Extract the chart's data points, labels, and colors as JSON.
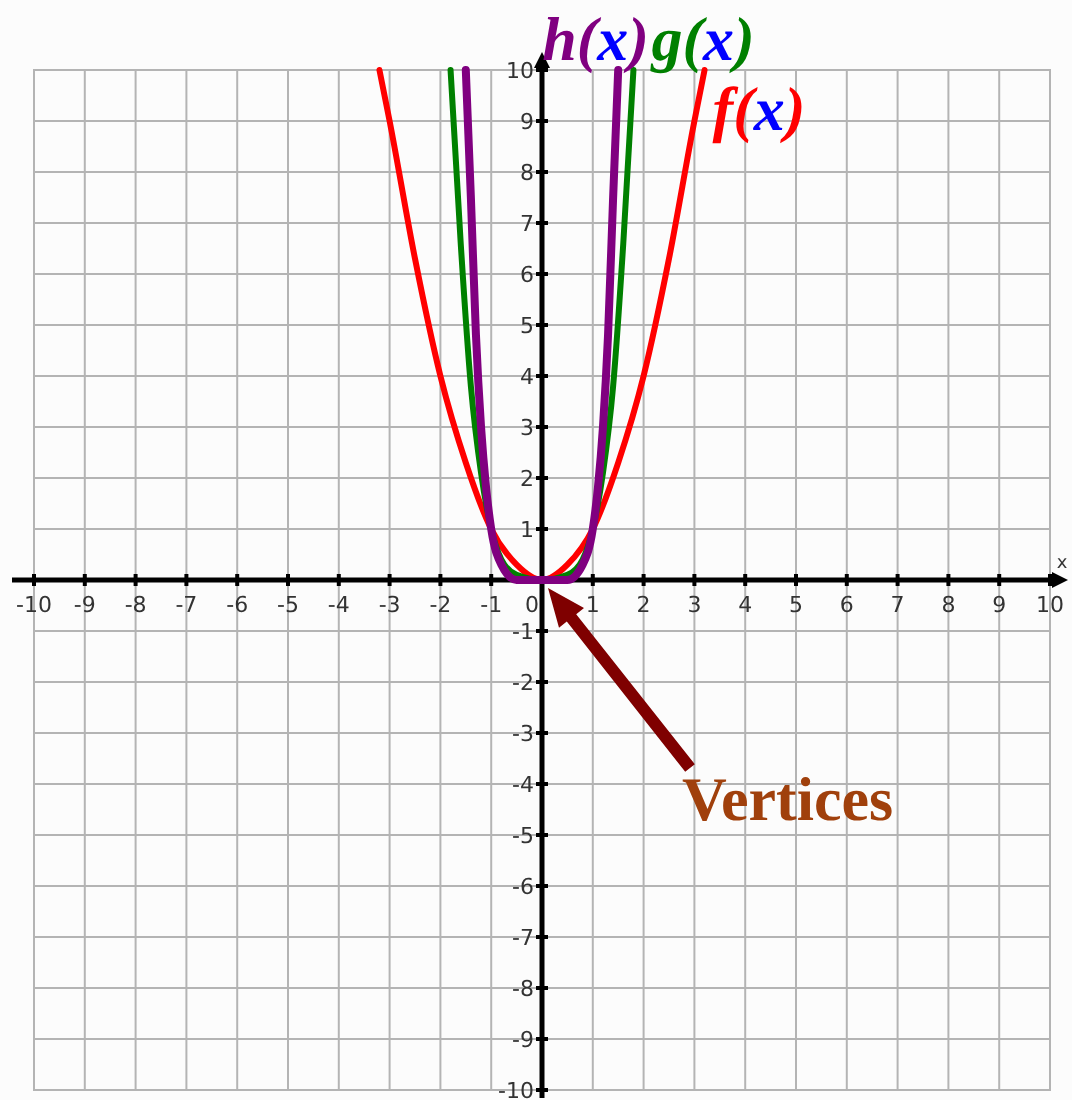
{
  "chart_data": {
    "type": "line",
    "xlabel": "x",
    "xlim": [
      -10,
      10
    ],
    "ylim": [
      -10,
      10
    ],
    "xticks": [
      -10,
      -9,
      -8,
      -7,
      -6,
      -5,
      -4,
      -3,
      -2,
      -1,
      0,
      1,
      2,
      3,
      4,
      5,
      6,
      7,
      8,
      9,
      10
    ],
    "yticks": [
      -10,
      -9,
      -8,
      -7,
      -6,
      -5,
      -4,
      -3,
      -2,
      -1,
      1,
      2,
      3,
      4,
      5,
      6,
      7,
      8,
      9,
      10
    ],
    "grid": true,
    "marker": "none",
    "line_style": "solid",
    "series": [
      {
        "name": "f(x)",
        "color": "#ff0000",
        "x": [
          -3.2,
          -3,
          -2.5,
          -2,
          -1.5,
          -1,
          -0.5,
          0,
          0.5,
          1,
          1.5,
          2,
          2.5,
          3,
          3.2
        ],
        "values": [
          10,
          9,
          6.3,
          4,
          2.3,
          1,
          0.3,
          0,
          0.3,
          1,
          2.3,
          4,
          6.3,
          9,
          10
        ]
      },
      {
        "name": "g(x)",
        "color": "#008000",
        "x": [
          -1.8,
          -1.6,
          -1.4,
          -1.2,
          -1,
          -0.8,
          -0.5,
          0,
          0.5,
          0.8,
          1,
          1.2,
          1.4,
          1.6,
          1.8
        ],
        "values": [
          10,
          6.6,
          3.8,
          2.1,
          1,
          0.4,
          0.1,
          0,
          0.1,
          0.4,
          1,
          2.1,
          3.8,
          6.6,
          10
        ]
      },
      {
        "name": "h(x)",
        "color": "#800080",
        "x": [
          -1.5,
          -1.4,
          -1.3,
          -1.2,
          -1.1,
          -1,
          -0.8,
          -0.5,
          0,
          0.5,
          0.8,
          1,
          1.1,
          1.2,
          1.3,
          1.4,
          1.5
        ],
        "values": [
          10,
          7.5,
          4.8,
          3,
          1.8,
          1,
          0.3,
          0,
          0,
          0,
          0.3,
          1,
          1.8,
          3,
          4.8,
          7.5,
          10
        ]
      }
    ],
    "annotations": [
      "Vertices"
    ]
  }
}
